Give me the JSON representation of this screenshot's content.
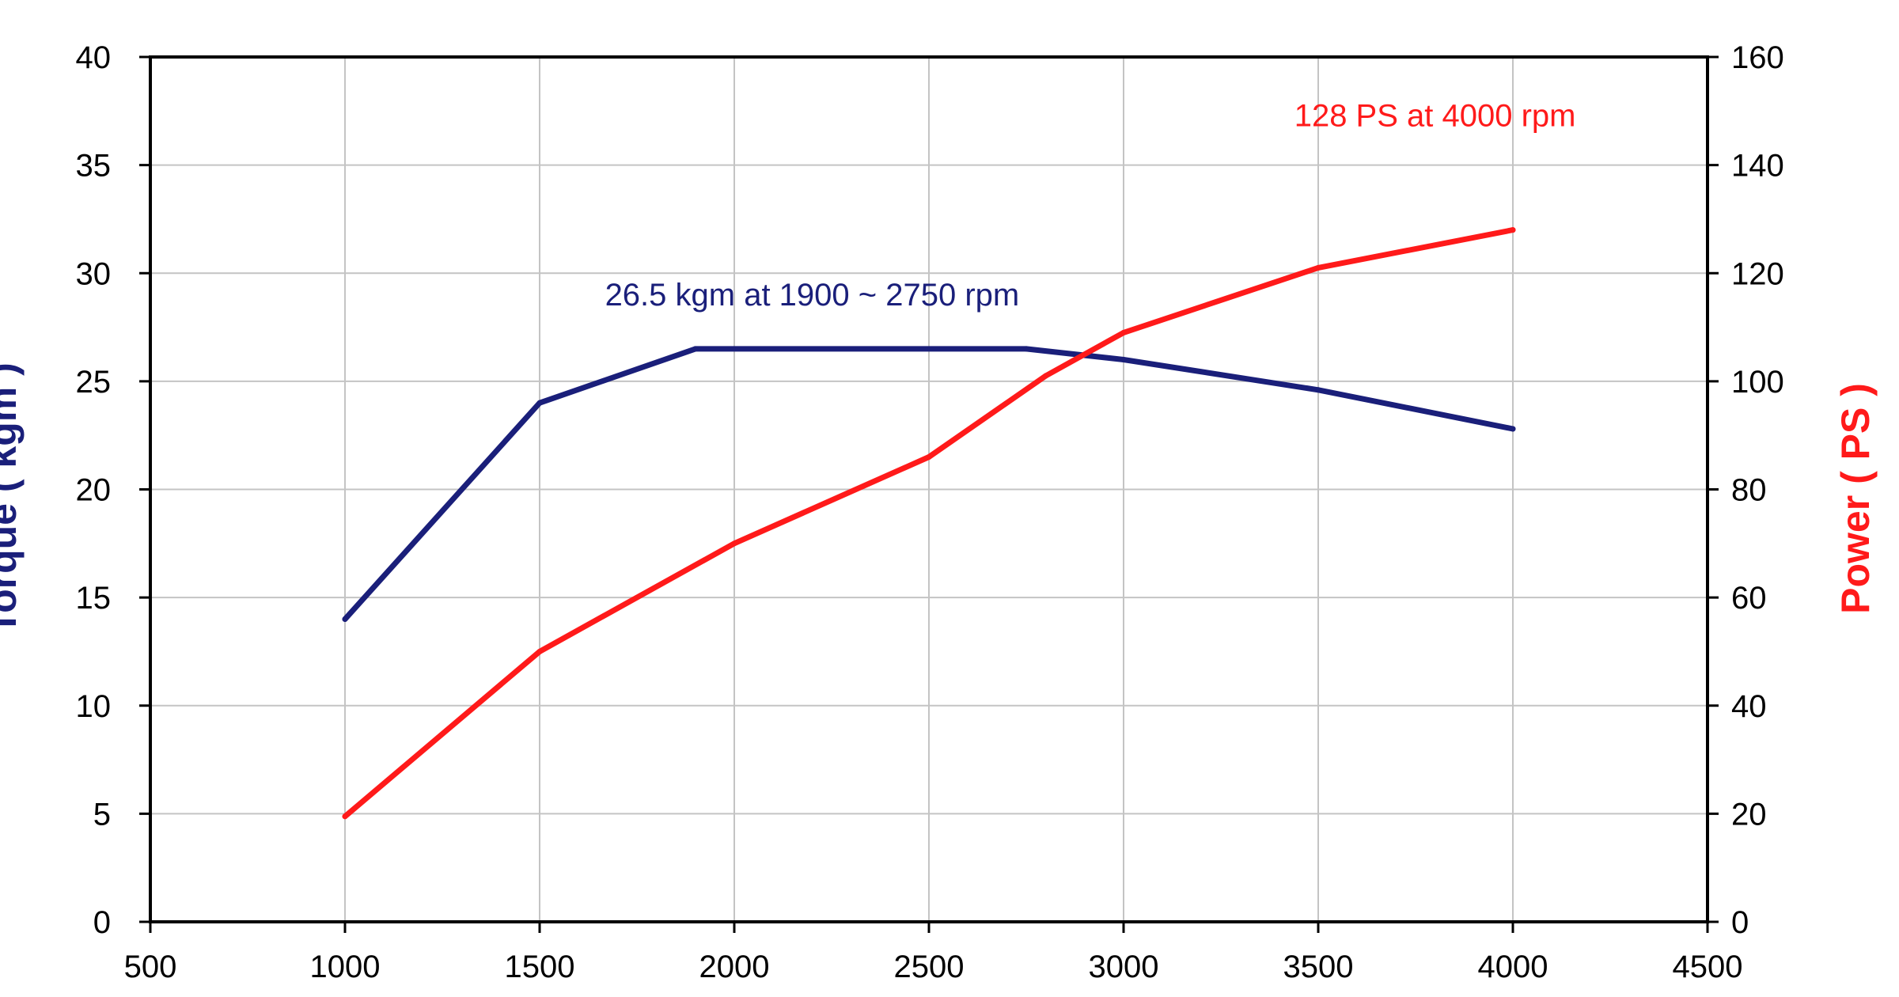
{
  "chart_data": {
    "type": "line",
    "x_axis": {
      "label": "",
      "range": [
        500,
        4500
      ],
      "ticks": [
        500,
        1000,
        1500,
        2000,
        2500,
        3000,
        3500,
        4000,
        4500
      ],
      "tick_labels": [
        "500",
        "1000",
        "1500",
        "2000",
        "2500",
        "3000",
        "3500",
        "4000",
        "4500"
      ]
    },
    "y_left": {
      "label": "Torque ( kgm )",
      "range": [
        0,
        40
      ],
      "ticks": [
        0,
        5,
        10,
        15,
        20,
        25,
        30,
        35,
        40
      ],
      "tick_labels": [
        "0",
        "5",
        "10",
        "15",
        "20",
        "25",
        "30",
        "35",
        "40"
      ],
      "color": "#1a1f7a"
    },
    "y_right": {
      "label": "Power ( PS )",
      "range": [
        0,
        160
      ],
      "ticks": [
        0,
        20,
        40,
        60,
        80,
        100,
        120,
        140,
        160
      ],
      "tick_labels": [
        "0",
        "20",
        "40",
        "60",
        "80",
        "100",
        "120",
        "140",
        "160"
      ],
      "color": "#ff1a1a"
    },
    "grid": true,
    "series": [
      {
        "axis": "left",
        "color": "#1a1f7a",
        "points": [
          [
            1000,
            14
          ],
          [
            1500,
            24
          ],
          [
            1900,
            26.5
          ],
          [
            2750,
            26.5
          ],
          [
            3000,
            26
          ],
          [
            3500,
            24.6
          ],
          [
            4000,
            22.8
          ]
        ]
      },
      {
        "axis": "right",
        "color": "#ff1a1a",
        "points": [
          [
            1000,
            19.5
          ],
          [
            1500,
            50
          ],
          [
            2000,
            70
          ],
          [
            2500,
            86
          ],
          [
            2800,
            101
          ],
          [
            3000,
            109
          ],
          [
            3500,
            121
          ],
          [
            4000,
            128
          ]
        ]
      }
    ],
    "annotations": [
      {
        "text": "26.5 kgm at 1900 ~ 2750 rpm",
        "x": 2200,
        "y": 28.5,
        "axis": "left",
        "color": "#1a1f7a"
      },
      {
        "text": "128 PS at 4000 rpm",
        "x": 3800,
        "y": 36.8,
        "axis": "left",
        "color": "#ff1a1a"
      }
    ]
  }
}
